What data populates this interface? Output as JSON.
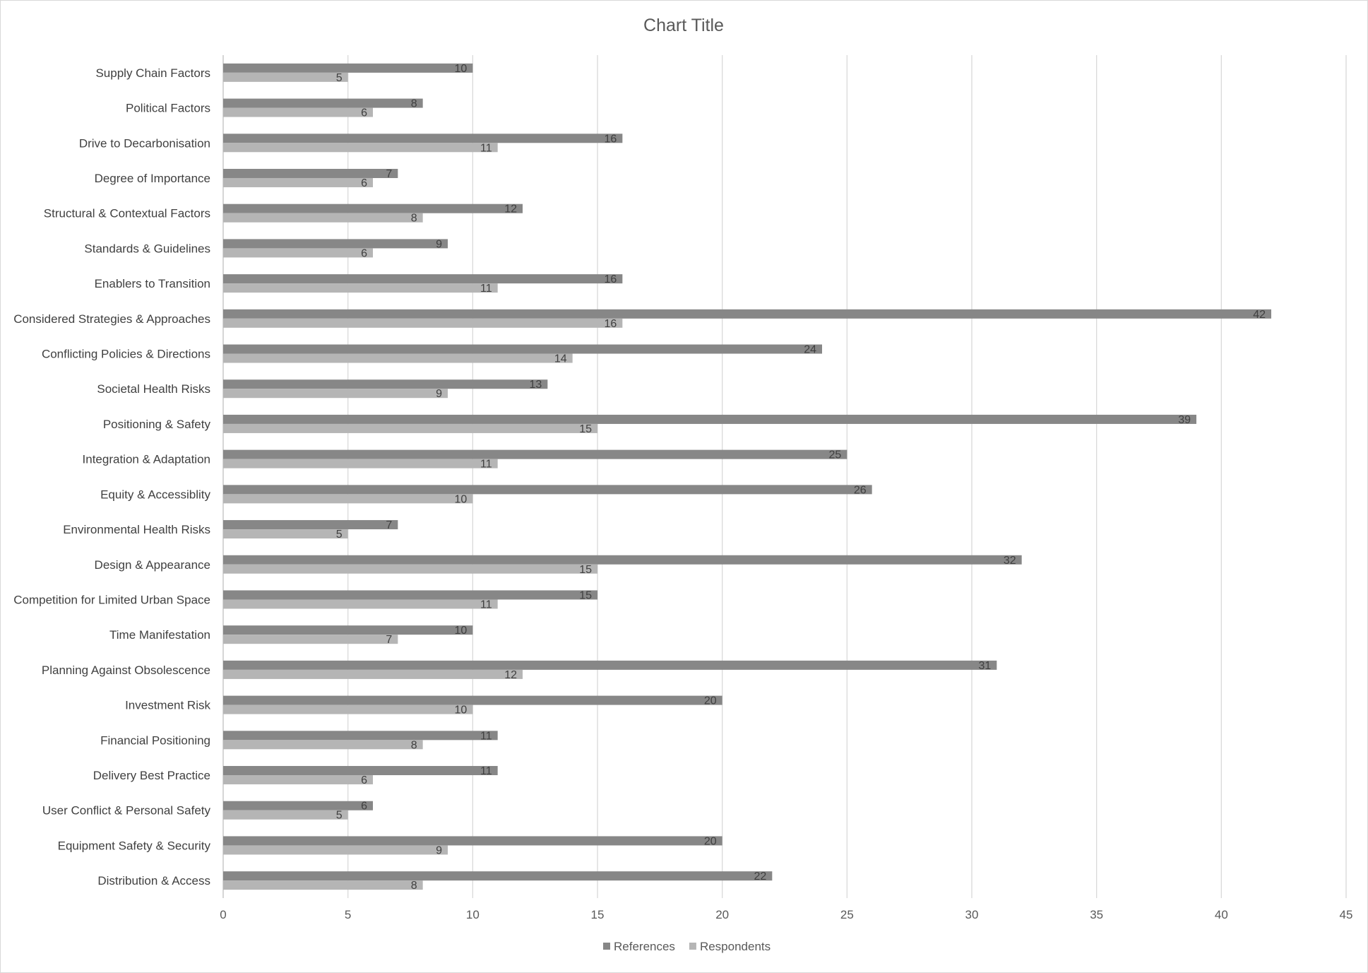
{
  "chart_data": {
    "type": "bar",
    "orientation": "horizontal",
    "title": "Chart Title",
    "categories": [
      "Supply Chain Factors",
      "Political Factors",
      "Drive to Decarbonisation",
      "Degree of Importance",
      "Structural & Contextual Factors",
      "Standards & Guidelines",
      "Enablers to Transition",
      "Considered Strategies & Approaches",
      "Conflicting Policies & Directions",
      "Societal Health Risks",
      "Positioning & Safety",
      "Integration & Adaptation",
      "Equity & Accessiblity",
      "Environmental Health Risks",
      "Design & Appearance",
      "Competition for Limited Urban Space",
      "Time Manifestation",
      "Planning Against Obsolescence",
      "Investment Risk",
      "Financial Positioning",
      "Delivery Best Practice",
      "User Conflict & Personal Safety",
      "Equipment Safety & Security",
      "Distribution & Access"
    ],
    "series": [
      {
        "name": "References",
        "color": "#878787",
        "values": [
          10,
          8,
          16,
          7,
          12,
          9,
          16,
          42,
          24,
          13,
          39,
          25,
          26,
          7,
          32,
          15,
          10,
          31,
          20,
          11,
          11,
          6,
          20,
          22
        ]
      },
      {
        "name": "Respondents",
        "color": "#b5b5b5",
        "values": [
          5,
          6,
          11,
          6,
          8,
          6,
          11,
          16,
          14,
          9,
          15,
          11,
          10,
          5,
          15,
          11,
          7,
          12,
          10,
          8,
          6,
          5,
          9,
          8
        ]
      }
    ],
    "xlim": [
      0,
      45
    ],
    "xticks": [
      "0",
      "5",
      "10",
      "15",
      "20",
      "25",
      "30",
      "35",
      "40",
      "45"
    ],
    "grid": true,
    "data_labels": true,
    "legend_position": "bottom"
  }
}
